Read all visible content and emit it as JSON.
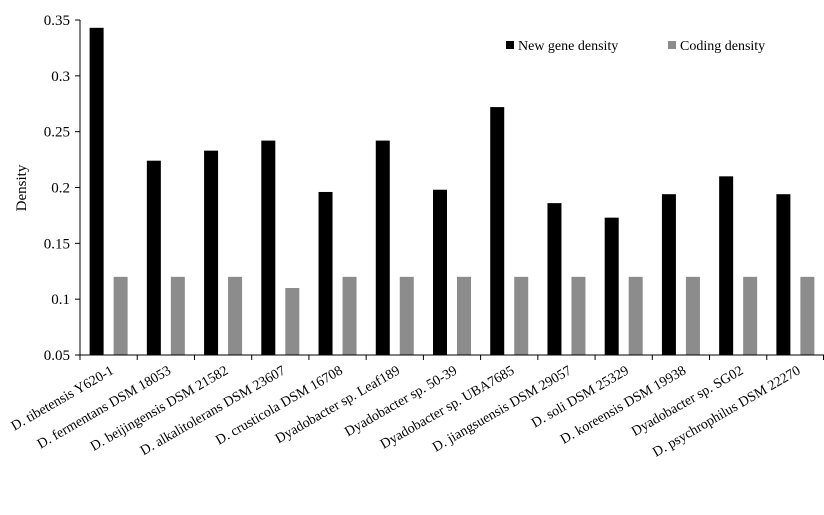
{
  "chart_data": {
    "type": "bar",
    "ylabel": "Density",
    "ylim": [
      0.05,
      0.35
    ],
    "yticks": [
      "0.05",
      "0.1",
      "0.15",
      "0.2",
      "0.25",
      "0.3",
      "0.35"
    ],
    "grid": false,
    "legend_position": "top-right",
    "categories": [
      "D. tibetensis Y620-1",
      "D. fermentans DSM 18053",
      "D. beijingensis DSM 21582",
      "D. alkalitolerans DSM 23607",
      "D. crusticola DSM 16708",
      "Dyadobacter sp. Leaf189",
      "Dyadobacter sp. 50-39",
      "Dyadobacter sp. UBA7685",
      "D. jiangsuensis DSM 29057",
      "D. soli DSM 25329",
      "D. koreensis DSM 19938",
      "Dyadobacter sp. SG02",
      "D. psychrophilus DSM 22270"
    ],
    "series": [
      {
        "name": "New gene density",
        "color": "#000000",
        "values": [
          0.343,
          0.224,
          0.233,
          0.242,
          0.196,
          0.242,
          0.198,
          0.272,
          0.186,
          0.173,
          0.194,
          0.21,
          0.194
        ]
      },
      {
        "name": "Coding density",
        "color": "#8c8c8c",
        "values": [
          0.12,
          0.12,
          0.12,
          0.11,
          0.12,
          0.12,
          0.12,
          0.12,
          0.12,
          0.12,
          0.12,
          0.12,
          0.12
        ]
      }
    ]
  }
}
